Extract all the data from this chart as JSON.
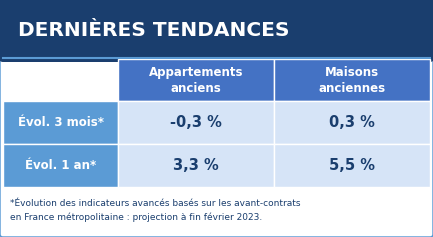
{
  "title": "DERNIÈRES TENDANCES",
  "title_bg": "#1a3e6e",
  "title_color": "#ffffff",
  "outer_bg": "#ffffff",
  "card_border_color": "#5b9bd5",
  "header_bg": "#4472c4",
  "header_color": "#ffffff",
  "row_label_bg": "#5b9bd5",
  "row_label_color": "#ffffff",
  "data_bg": "#d6e4f7",
  "data_color": "#1a3e6e",
  "col_headers": [
    "Appartements\nanciens",
    "Maisons\nanciennes"
  ],
  "row_labels": [
    "Évol. 3 mois*",
    "Évol. 1 an*"
  ],
  "data": [
    [
      "-0,3 %",
      "0,3 %"
    ],
    [
      "3,3 %",
      "5,5 %"
    ]
  ],
  "footnote_line1": "*Évolution des indicateurs avancés basés sur les avant-contrats",
  "footnote_line2": "en France métropolitaine : projection à fin février 2023.",
  "footnote_color": "#1a3e6e",
  "fig_width": 4.33,
  "fig_height": 2.37,
  "dpi": 100
}
